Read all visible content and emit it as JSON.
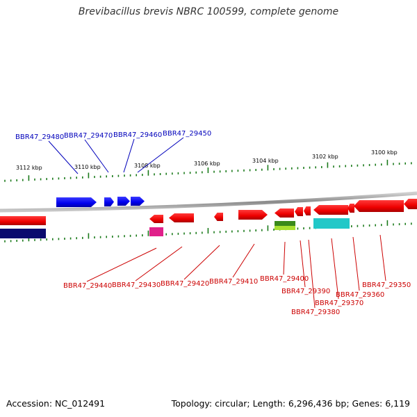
{
  "title": "Brevibacillus brevis NBRC 100599, complete genome",
  "footer": {
    "accession": "Accession: NC_012491",
    "stats": "Topology: circular; Length: 6,296,436 bp; Genes: 6,119"
  },
  "kbp_labels": [
    "3112 kbp",
    "3110 kbp",
    "3108 kbp",
    "3106 kbp",
    "3104 kbp",
    "3102 kbp",
    "3100 kbp"
  ],
  "top_genes": [
    "BBR47_29480",
    "BBR47_29470",
    "BBR47_29460",
    "BBR47_29450"
  ],
  "bottom_genes": [
    "BBR47_29440",
    "BBR47_29430",
    "BBR47_29420",
    "BBR47_29410",
    "BBR47_29400",
    "BBR47_29390",
    "BBR47_29380",
    "BBR47_29370",
    "BBR47_29360",
    "BBR47_29350"
  ],
  "colors": {
    "top_strand": "#0000ee",
    "bottom_strand": "#ee0000",
    "top_label": "#0000bb",
    "bottom_label": "#cc0000",
    "tick": "#1a7a1a",
    "axis": "#9a9a9a",
    "navy": "#0a0a6e",
    "magenta": "#e0208a",
    "green": "#3a8a1a",
    "cyan": "#22c8c8"
  }
}
